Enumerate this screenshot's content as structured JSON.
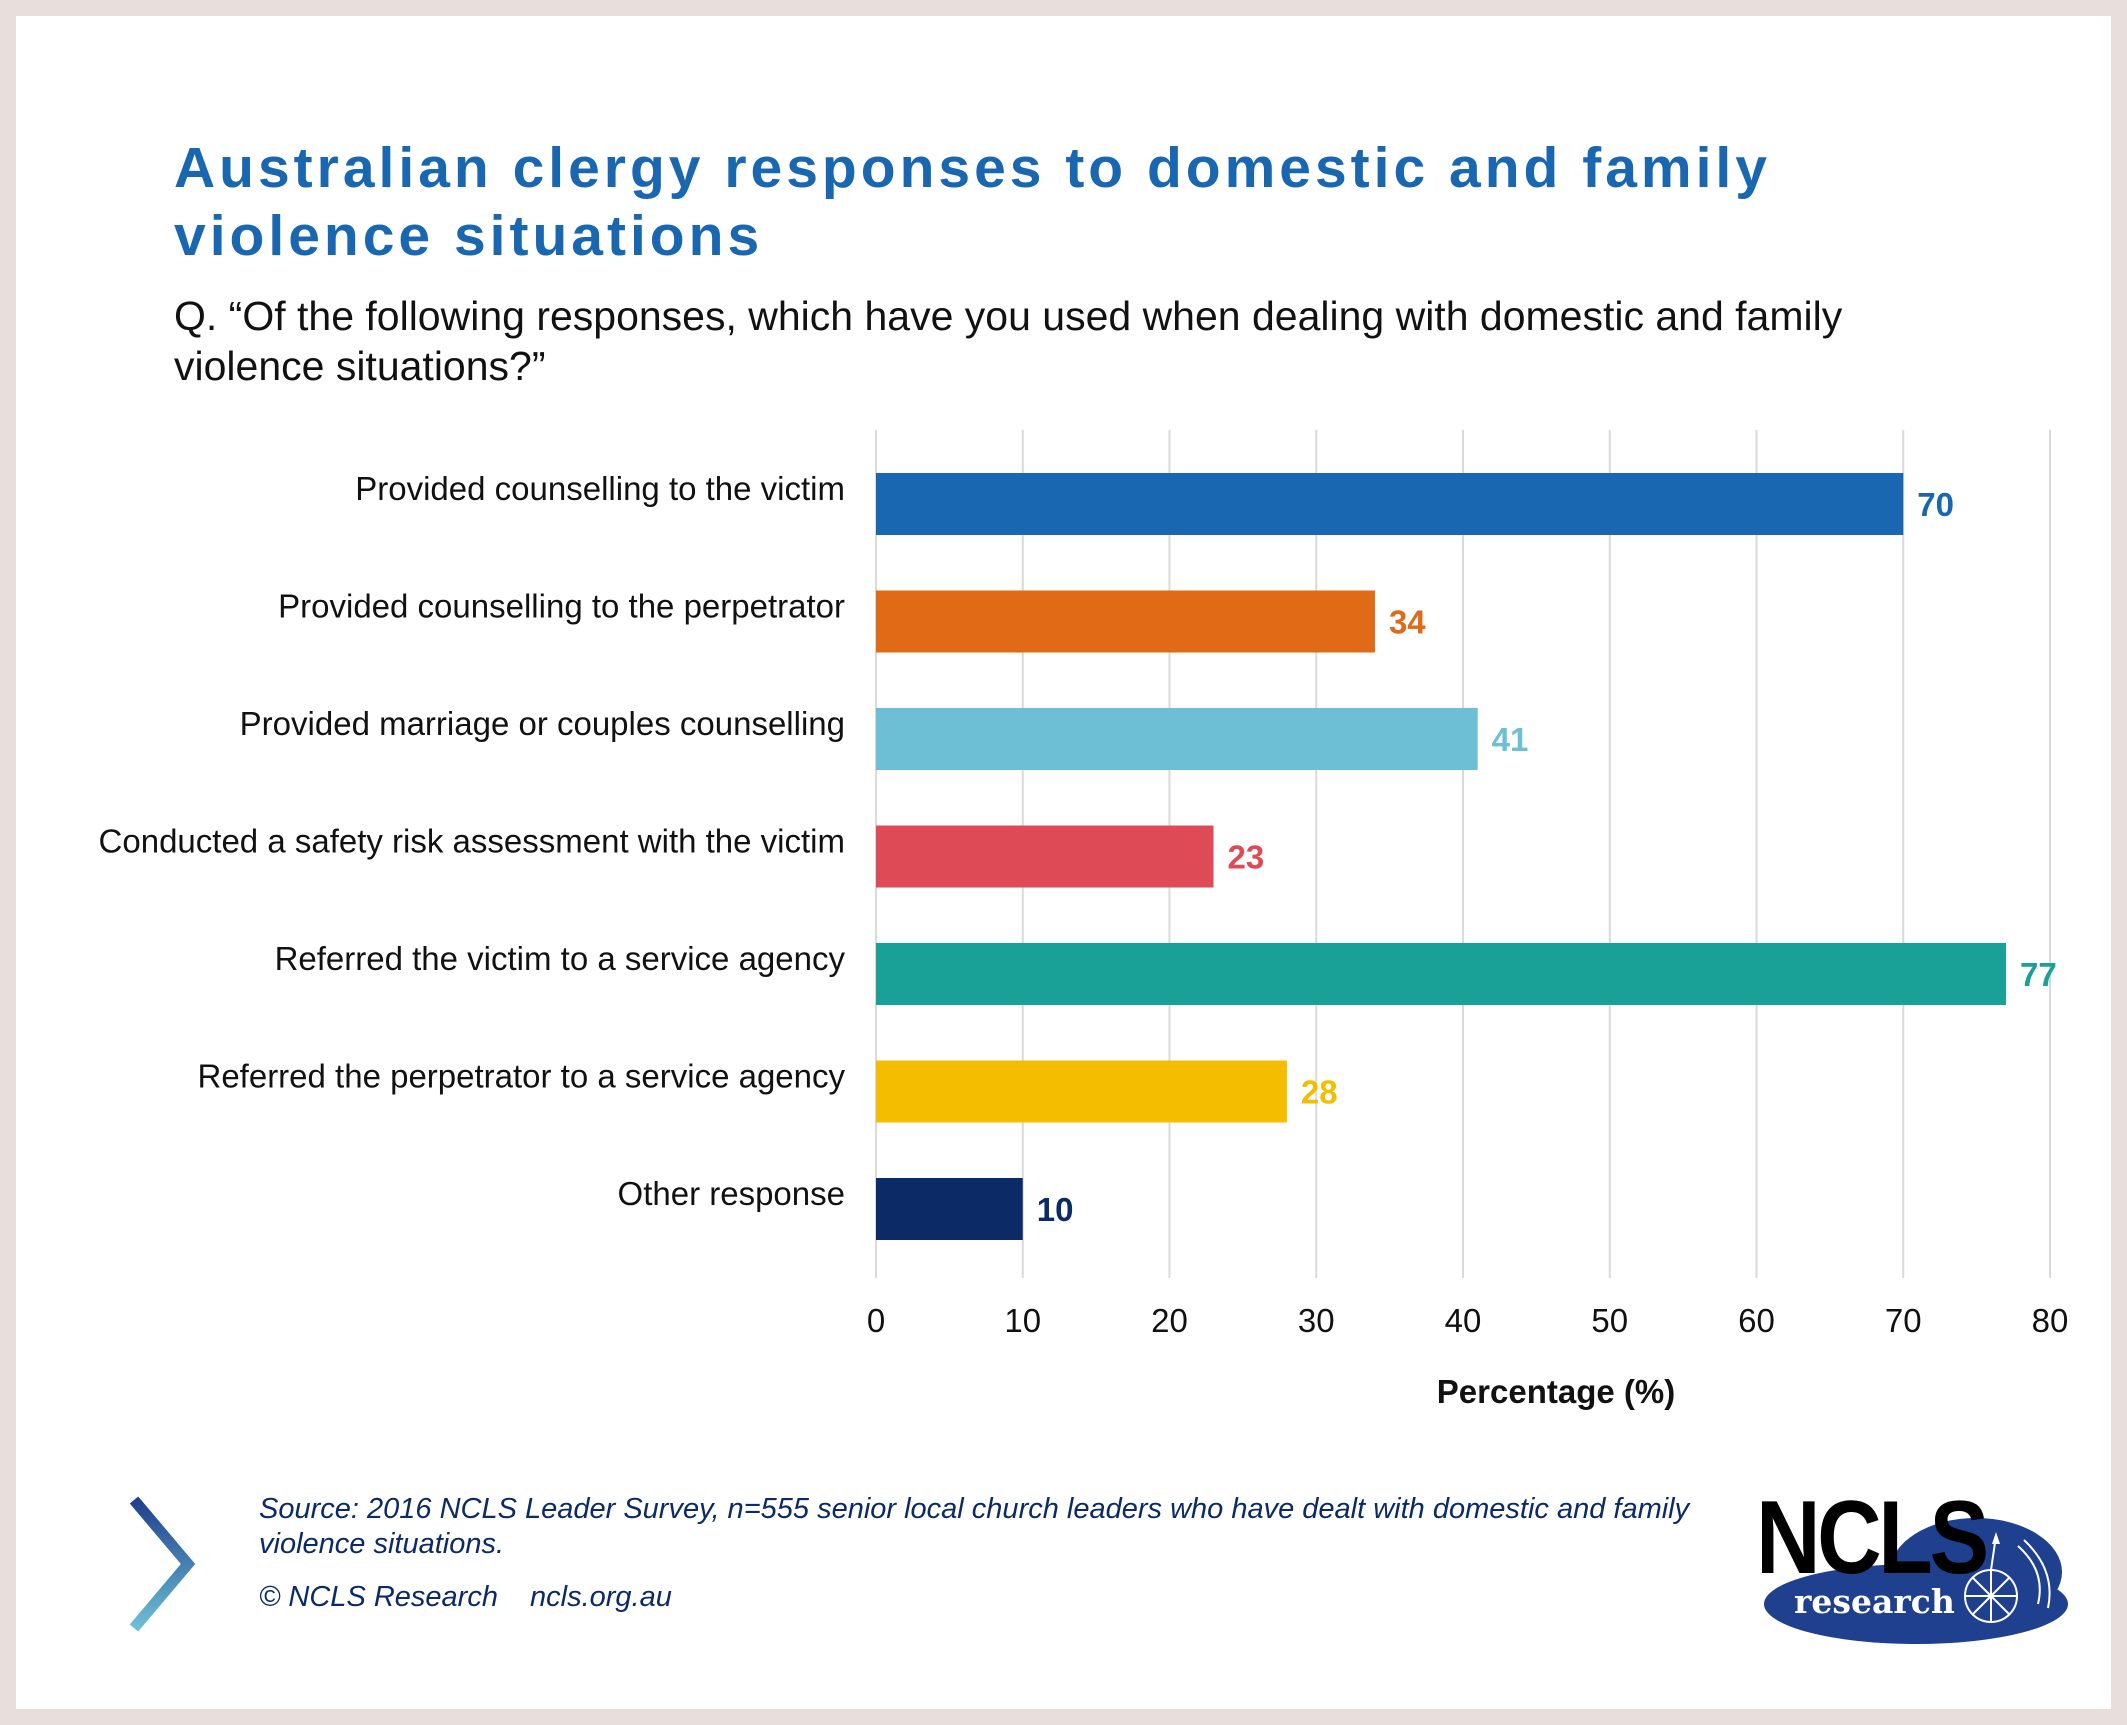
{
  "header": {
    "title": "Australian clergy responses to domestic and family violence situations",
    "subtitle": "Q. “Of the following responses, which have you used when dealing with domestic and family violence situations?”"
  },
  "chart_data": {
    "type": "bar",
    "orientation": "horizontal",
    "categories": [
      "Provided counselling to the victim",
      "Provided counselling to the perpetrator",
      "Provided marriage or couples counselling",
      "Conducted a safety risk assessment with the victim",
      "Referred the victim to a service agency",
      "Referred the perpetrator to a service agency",
      "Other response"
    ],
    "values": [
      70,
      34,
      41,
      23,
      77,
      28,
      10
    ],
    "colors": [
      "#1a67b1",
      "#e06a16",
      "#6cbfd4",
      "#de4a55",
      "#1aa197",
      "#f4bd00",
      "#0b2a66"
    ],
    "xlabel": "Percentage (%)",
    "ylabel": "",
    "xlim": [
      0,
      80
    ],
    "xticks": [
      0,
      10,
      20,
      30,
      40,
      50,
      60,
      70,
      80
    ],
    "grid": true
  },
  "footer": {
    "source": "Source: 2016 NCLS Leader Survey, n=555 senior local church leaders who have dealt with domestic and family violence situations.",
    "copyright": "© NCLS Research",
    "website": "ncls.org.au"
  },
  "logo": {
    "brand": "NCLS",
    "sub": "research",
    "color": "#1f3f8f"
  }
}
